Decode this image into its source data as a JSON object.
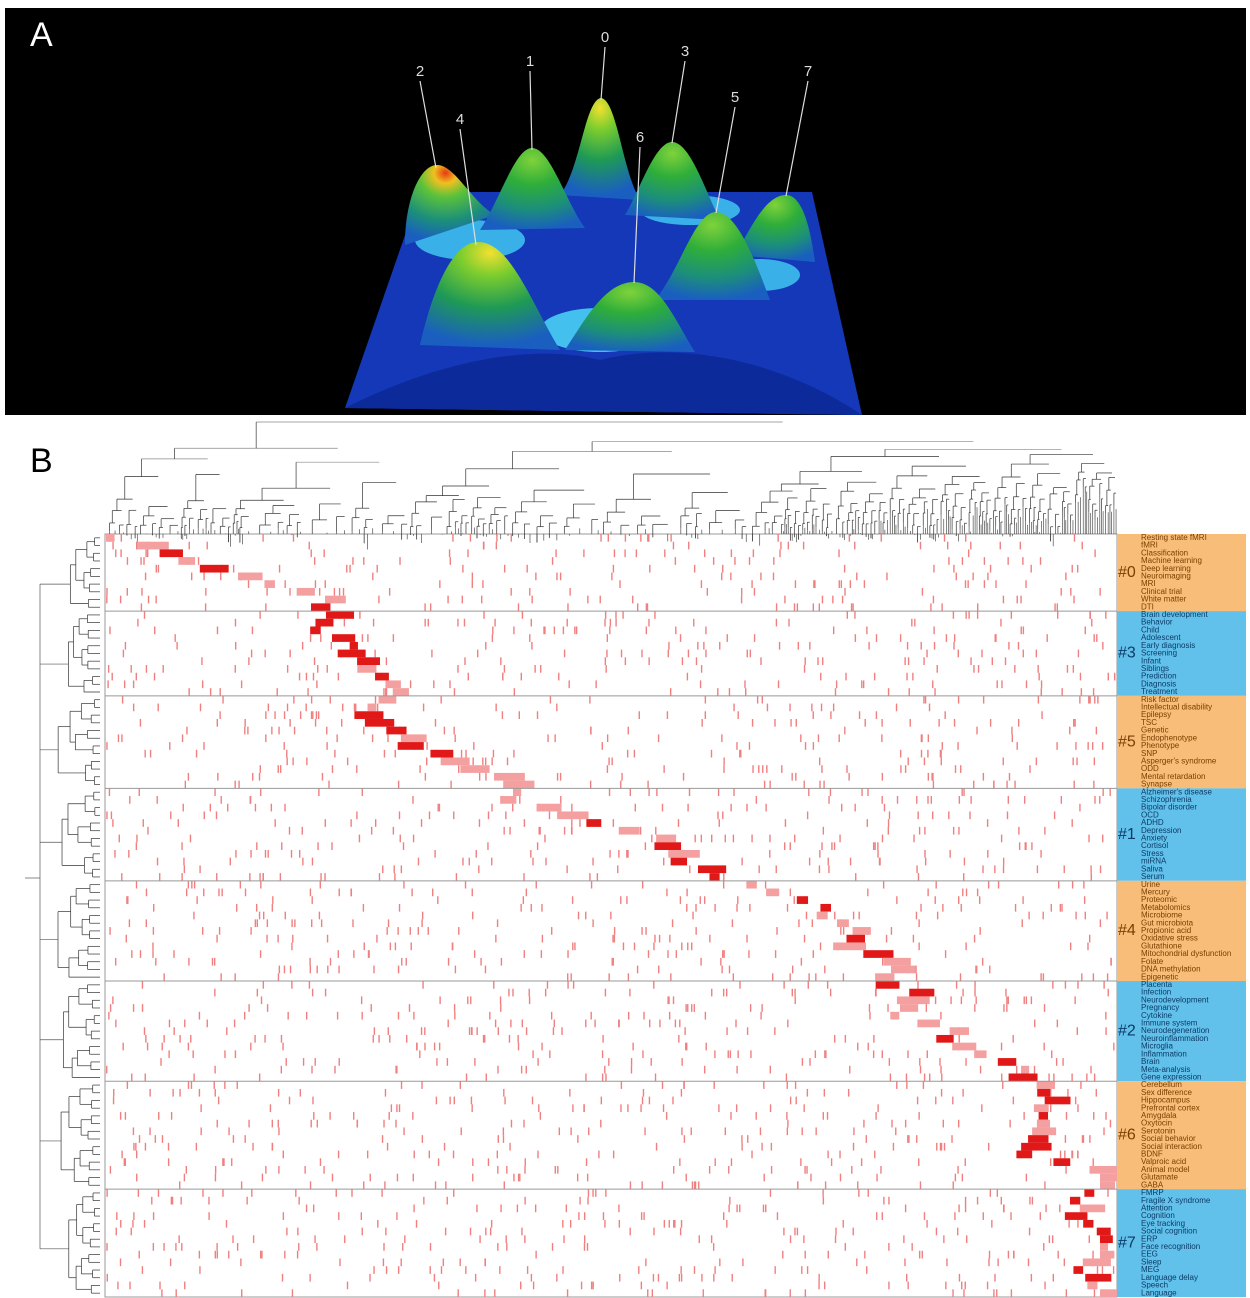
{
  "panel_a": {
    "label": "A",
    "peaks": [
      "0",
      "1",
      "2",
      "3",
      "4",
      "5",
      "6",
      "7"
    ]
  },
  "panel_b": {
    "label": "B",
    "clusters": [
      {
        "label": "#0",
        "terms": [
          "Resting state fMRI",
          "fMRI",
          "Classification",
          "Machine learning",
          "Deep learning",
          "Neuroimaging",
          "MRI",
          "Clinical trial",
          "White matter",
          "DTI"
        ]
      },
      {
        "label": "#3",
        "terms": [
          "Brain development",
          "Behavior",
          "Child",
          "Adolescent",
          "Early diagnosis",
          "Screening",
          "Infant",
          "Siblings",
          "Prediction",
          "Diagnosis",
          "Treatment"
        ]
      },
      {
        "label": "#5",
        "terms": [
          "Risk factor",
          "Intellectual disability",
          "Epilepsy",
          "TSC",
          "Genetic",
          "Endophenotype",
          "Phenotype",
          "SNP",
          "Asperger's syndrome",
          "ODD",
          "Mental retardation",
          "Synapse"
        ]
      },
      {
        "label": "#1",
        "terms": [
          "Alzheimer's disease",
          "Schizophrenia",
          "Bipolar disorder",
          "OCD",
          "ADHD",
          "Depression",
          "Anxiety",
          "Cortisol",
          "Stress",
          "miRNA",
          "Saliva",
          "Serum"
        ]
      },
      {
        "label": "#4",
        "terms": [
          "Urine",
          "Mercury",
          "Proteomic",
          "Metabolomics",
          "Microbiome",
          "Gut microbiota",
          "Propionic acid",
          "Oxidative stress",
          "Glutathione",
          "Mitochondrial dysfunction",
          "Folate",
          "DNA methylation",
          "Epigenetic"
        ]
      },
      {
        "label": "#2",
        "terms": [
          "Placenta",
          "Infection",
          "Neurodevelopment",
          "Pregnancy",
          "Cytokine",
          "Immune system",
          "Neurodegeneration",
          "Neuroinflammation",
          "Microglia",
          "Inflammation",
          "Brain",
          "Meta-analysis",
          "Gene expression"
        ]
      },
      {
        "label": "#6",
        "terms": [
          "Cerebellum",
          "Sex difference",
          "Hippocampus",
          "Prefrontal cortex",
          "Amygdala",
          "Oxytocin",
          "Serotonin",
          "Social behavior",
          "Social interaction",
          "BDNF",
          "Valproic acid",
          "Animal model",
          "Glutamate",
          "GABA"
        ]
      },
      {
        "label": "#7",
        "terms": [
          "FMRP",
          "Fragile X syndrome",
          "Attention",
          "Cognition",
          "Eye tracking",
          "Social cognition",
          "ERP",
          "Face recognition",
          "EEG",
          "Sleep",
          "MEG",
          "Language delay",
          "Speech",
          "Language"
        ]
      }
    ]
  }
}
